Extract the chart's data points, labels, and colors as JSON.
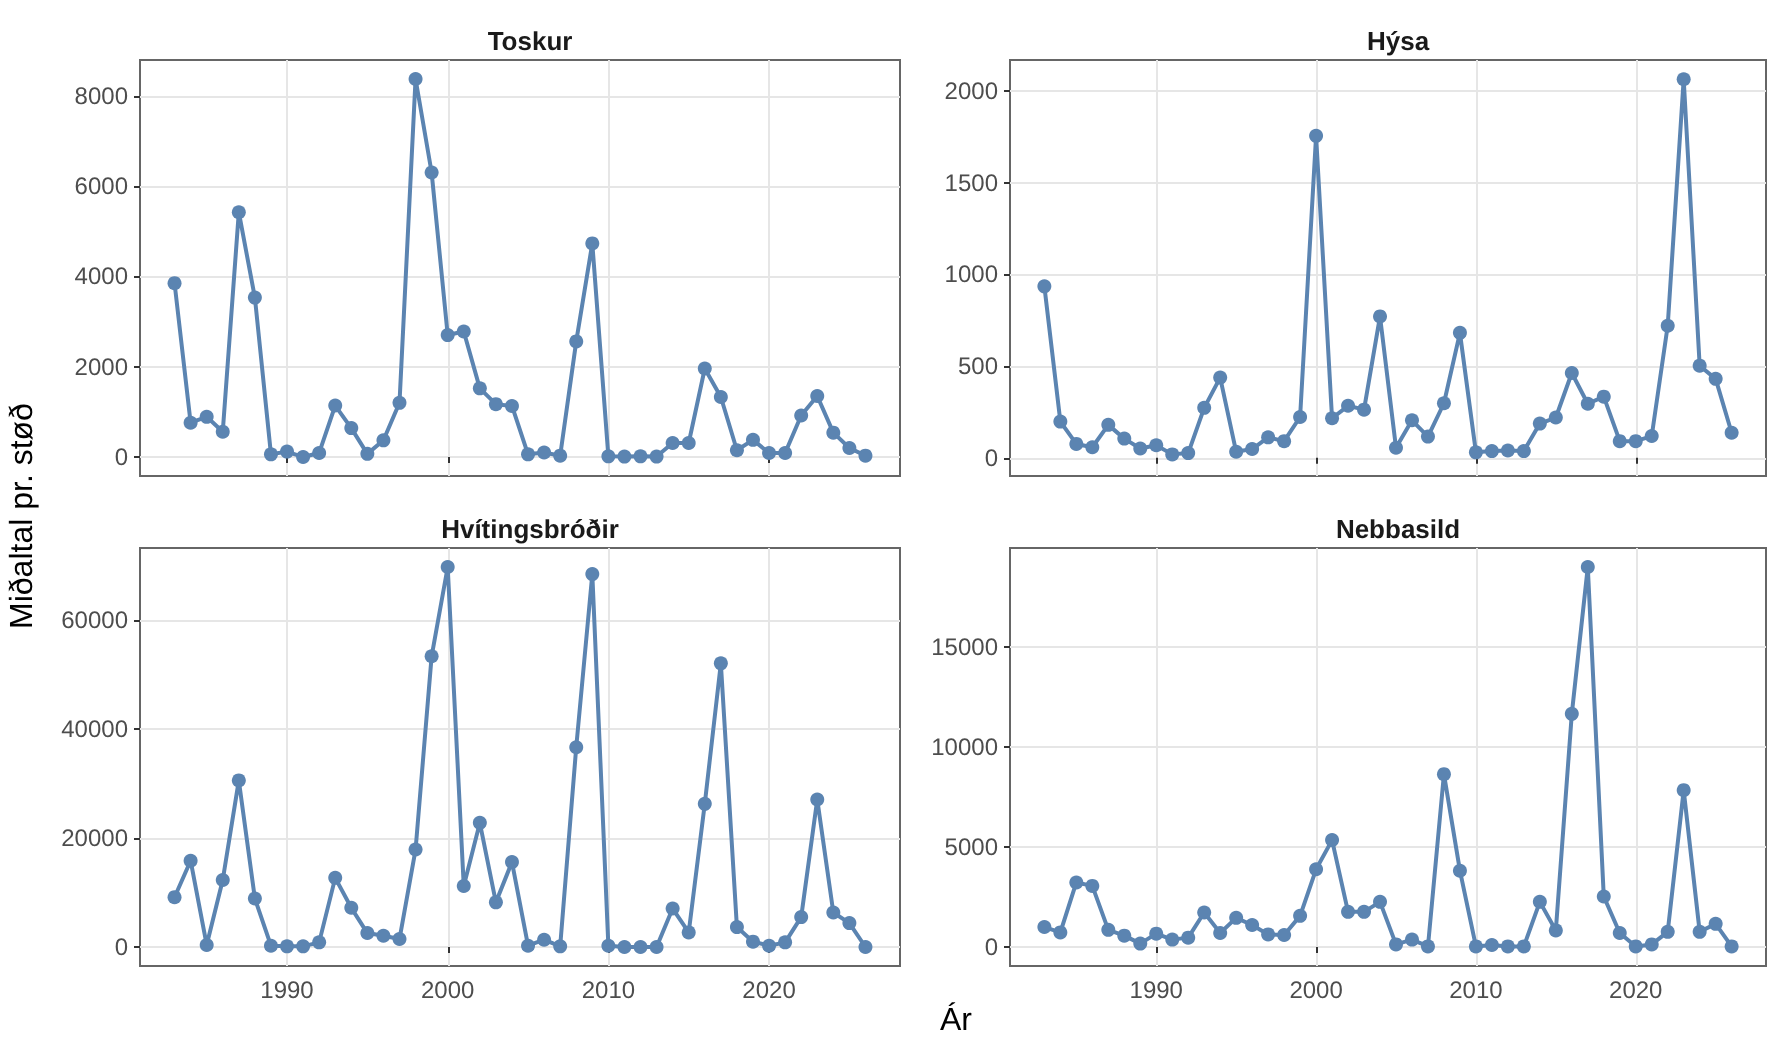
{
  "chart_data": [
    {
      "type": "line",
      "title": "Toskur",
      "ylabel": "Miðaltal pr. støð",
      "x": [
        1983,
        1984,
        1985,
        1986,
        1987,
        1988,
        1989,
        1990,
        1991,
        1992,
        1993,
        1994,
        1995,
        1996,
        1997,
        1998,
        1999,
        2000,
        2001,
        2002,
        2003,
        2004,
        2005,
        2006,
        2007,
        2008,
        2009,
        2010,
        2011,
        2012,
        2013,
        2014,
        2015,
        2016,
        2017,
        2018,
        2019,
        2020,
        2021,
        2022,
        2023,
        2024,
        2025,
        2026
      ],
      "series": [
        {
          "color": "#5b84b1",
          "values": [
            3850,
            760,
            890,
            560,
            5420,
            3530,
            60,
            120,
            0,
            90,
            1140,
            640,
            70,
            370,
            1200,
            8370,
            6300,
            2700,
            2780,
            1520,
            1170,
            1130,
            60,
            100,
            30,
            2560,
            4730,
            15,
            10,
            15,
            10,
            310,
            310,
            1960,
            1330,
            150,
            380,
            90,
            90,
            920,
            1350,
            540,
            200,
            30
          ]
        }
      ],
      "xlim": [
        1980.85,
        2028.15
      ],
      "xticks": [
        1990,
        2000,
        2010,
        2020
      ],
      "ylim": [
        -420,
        8790
      ],
      "yticks": [
        0,
        2000,
        4000,
        6000,
        8000
      ],
      "grid": true,
      "marker": "circle",
      "tick_labels": "y"
    },
    {
      "type": "line",
      "title": "Hýsa",
      "x": [
        1983,
        1984,
        1985,
        1986,
        1987,
        1988,
        1989,
        1990,
        1991,
        1992,
        1993,
        1994,
        1995,
        1996,
        1997,
        1998,
        1999,
        2000,
        2001,
        2002,
        2003,
        2004,
        2005,
        2006,
        2007,
        2008,
        2009,
        2010,
        2011,
        2012,
        2013,
        2014,
        2015,
        2016,
        2017,
        2018,
        2019,
        2020,
        2021,
        2022,
        2023,
        2024,
        2025,
        2026
      ],
      "series": [
        {
          "color": "#5b84b1",
          "values": [
            935,
            197,
            75,
            57,
            179,
            104,
            50,
            68,
            18,
            25,
            272,
            437,
            32,
            47,
            111,
            90,
            222,
            1756,
            215,
            283,
            262,
            771,
            54,
            204,
            115,
            297,
            681,
            29,
            36,
            39,
            36,
            186,
            219,
            462,
            294,
            333,
            90,
            90,
            118,
            720,
            2065,
            502,
            430,
            136
          ]
        }
      ],
      "xlim": [
        1980.85,
        2028.15
      ],
      "xticks": [
        1990,
        2000,
        2010,
        2020
      ],
      "ylim": [
        -100,
        2170
      ],
      "yticks": [
        0,
        500,
        1000,
        1500,
        2000
      ],
      "grid": true,
      "marker": "circle",
      "tick_labels": "y"
    },
    {
      "type": "line",
      "title": "Hvítingsbróðir",
      "xlabel": "Ár",
      "x": [
        1983,
        1984,
        1985,
        1986,
        1987,
        1988,
        1989,
        1990,
        1991,
        1992,
        1993,
        1994,
        1995,
        1996,
        1997,
        1998,
        1999,
        2000,
        2001,
        2002,
        2003,
        2004,
        2005,
        2006,
        2007,
        2008,
        2009,
        2010,
        2011,
        2012,
        2013,
        2014,
        2015,
        2016,
        2017,
        2018,
        2019,
        2020,
        2021,
        2022,
        2023,
        2024,
        2025,
        2026
      ],
      "series": [
        {
          "color": "#5b84b1",
          "values": [
            9150,
            15850,
            370,
            12300,
            30600,
            8900,
            240,
            120,
            120,
            850,
            12700,
            7200,
            2560,
            2070,
            1460,
            17900,
            53400,
            69800,
            11200,
            22800,
            8200,
            15600,
            240,
            1340,
            120,
            36700,
            68500,
            240,
            0,
            0,
            0,
            7070,
            2680,
            26300,
            52100,
            3660,
            980,
            240,
            850,
            5490,
            27100,
            6340,
            4390,
            0
          ]
        }
      ],
      "xlim": [
        1980.85,
        2028.15
      ],
      "xticks": [
        1990,
        2000,
        2010,
        2020
      ],
      "ylim": [
        -3490,
        73290
      ],
      "yticks": [
        0,
        20000,
        40000,
        60000
      ],
      "grid": true,
      "marker": "circle"
    },
    {
      "type": "line",
      "title": "Nebbasild",
      "x": [
        1983,
        1984,
        1985,
        1986,
        1987,
        1988,
        1989,
        1990,
        1991,
        1992,
        1993,
        1994,
        1995,
        1996,
        1997,
        1998,
        1999,
        2000,
        2001,
        2002,
        2003,
        2004,
        2005,
        2006,
        2007,
        2008,
        2009,
        2010,
        2011,
        2012,
        2013,
        2014,
        2015,
        2016,
        2017,
        2018,
        2019,
        2020,
        2021,
        2022,
        2023,
        2024,
        2025,
        2026
      ],
      "series": [
        {
          "color": "#5b84b1",
          "values": [
            1000,
            730,
            3230,
            3060,
            860,
            570,
            170,
            670,
            370,
            470,
            1730,
            700,
            1460,
            1100,
            630,
            600,
            1560,
            3890,
            5350,
            1760,
            1760,
            2260,
            130,
            370,
            30,
            8650,
            3820,
            30,
            100,
            30,
            30,
            2260,
            830,
            11670,
            19020,
            2530,
            700,
            30,
            130,
            760,
            7850,
            760,
            1160,
            30
          ]
        }
      ],
      "xlim": [
        1980.85,
        2028.15
      ],
      "xticks": [
        1990,
        2000,
        2010,
        2020
      ],
      "ylim": [
        -950,
        19970
      ],
      "yticks": [
        0,
        5000,
        10000,
        15000
      ],
      "grid": true,
      "marker": "circle"
    }
  ]
}
